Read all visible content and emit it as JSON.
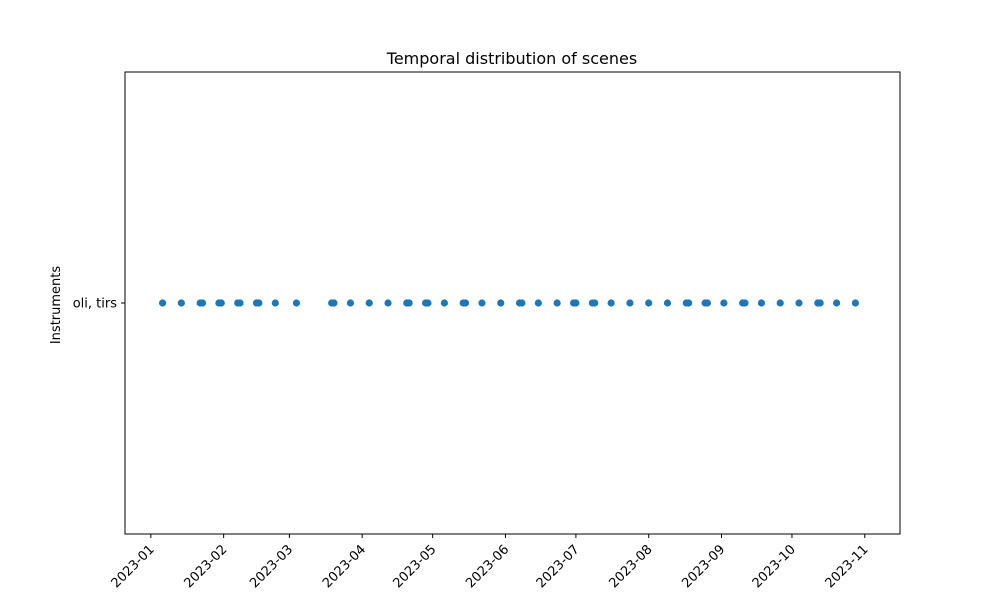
{
  "chart_data": {
    "type": "scatter",
    "title": "Temporal distribution of scenes",
    "xlabel": "",
    "ylabel": "Instruments",
    "categories": [
      "oli, tirs"
    ],
    "xlim": [
      "2022-12-21",
      "2023-11-16"
    ],
    "x_ticks": [
      "2023-01-01",
      "2023-02-01",
      "2023-03-01",
      "2023-04-01",
      "2023-05-01",
      "2023-06-01",
      "2023-07-01",
      "2023-08-01",
      "2023-09-01",
      "2023-10-01",
      "2023-11-01"
    ],
    "x_tick_labels": [
      "2023-01",
      "2023-02",
      "2023-03",
      "2023-04",
      "2023-05",
      "2023-06",
      "2023-07",
      "2023-08",
      "2023-09",
      "2023-10",
      "2023-11"
    ],
    "grid": false,
    "marker_color": "#1f77b4",
    "series": [
      {
        "category": "oli, tirs",
        "x": [
          "2023-01-06",
          "2023-01-14",
          "2023-01-22",
          "2023-01-23",
          "2023-01-30",
          "2023-01-31",
          "2023-02-07",
          "2023-02-08",
          "2023-02-15",
          "2023-02-16",
          "2023-02-23",
          "2023-03-04",
          "2023-03-19",
          "2023-03-20",
          "2023-03-27",
          "2023-04-04",
          "2023-04-12",
          "2023-04-20",
          "2023-04-21",
          "2023-04-28",
          "2023-04-29",
          "2023-05-06",
          "2023-05-14",
          "2023-05-15",
          "2023-05-22",
          "2023-05-30",
          "2023-06-07",
          "2023-06-08",
          "2023-06-15",
          "2023-06-23",
          "2023-06-30",
          "2023-07-01",
          "2023-07-08",
          "2023-07-09",
          "2023-07-16",
          "2023-07-24",
          "2023-08-01",
          "2023-08-09",
          "2023-08-17",
          "2023-08-18",
          "2023-08-25",
          "2023-08-26",
          "2023-09-02",
          "2023-09-10",
          "2023-09-11",
          "2023-09-18",
          "2023-09-26",
          "2023-10-04",
          "2023-10-12",
          "2023-10-13",
          "2023-10-20",
          "2023-10-28"
        ]
      }
    ]
  }
}
